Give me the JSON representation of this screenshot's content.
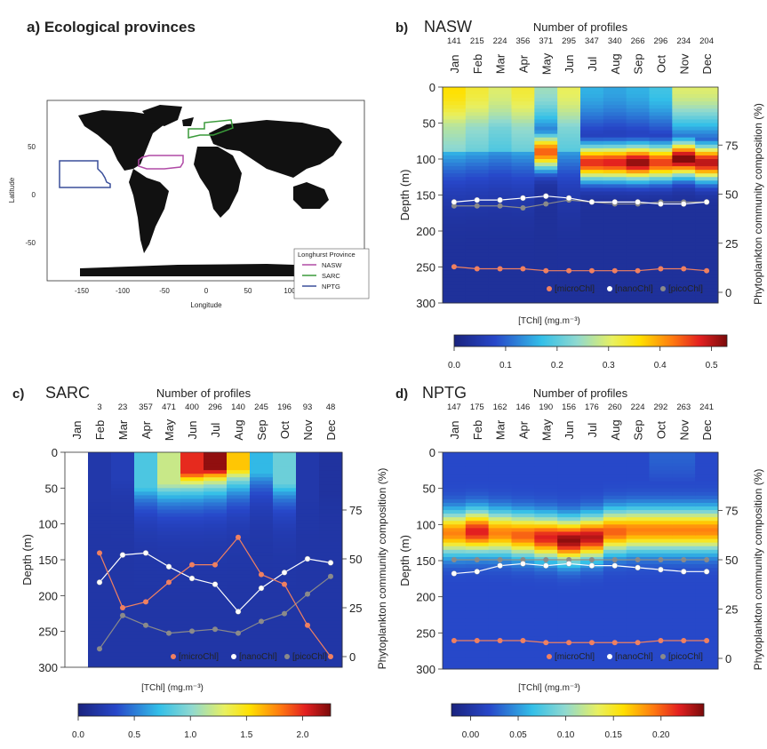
{
  "panel_a": {
    "title": "a)  Ecological provinces",
    "xlabel": "Longitude",
    "ylabel": "Latitude",
    "xticks": [
      "-150",
      "-100",
      "-50",
      "0",
      "50",
      "100",
      "150"
    ],
    "yticks": [
      "50",
      "0",
      "-50"
    ],
    "legend_title": "Longhurst Province",
    "legend": [
      {
        "label": "NASW",
        "color": "#b04aa6"
      },
      {
        "label": "SARC",
        "color": "#3a9a3a"
      },
      {
        "label": "NPTG",
        "color": "#3a4f9a"
      }
    ]
  },
  "shared": {
    "months": [
      "Jan",
      "Feb",
      "Mar",
      "Apr",
      "May",
      "Jun",
      "Jul",
      "Aug",
      "Sep",
      "Oct",
      "Nov",
      "Dec"
    ],
    "profiles_label": "Number of profiles",
    "depth_label": "Depth (m)",
    "right_label": "Phytoplankton community composition (%)",
    "legend_micro": "[microChl]",
    "legend_nano": "[nanoChl]",
    "legend_pico": "[picoChl]",
    "colorbar_label": "[TChl] (mg.m⁻³)",
    "depth_ticks": [
      "0",
      "50",
      "100",
      "150",
      "200",
      "250",
      "300"
    ],
    "pct_ticks": [
      "75",
      "50",
      "25",
      "0"
    ],
    "micro_color": "#f08060",
    "nano_color": "#ffffff",
    "pico_color": "#8a8a8a"
  },
  "chart_data": [
    {
      "id": "NASW",
      "type": "heatmap",
      "panel_label": "b)",
      "title": "NASW",
      "profiles": [
        "141",
        "215",
        "224",
        "356",
        "371",
        "295",
        "347",
        "340",
        "266",
        "296",
        "234",
        "204"
      ],
      "colorbar_ticks": [
        "0.0",
        "0.1",
        "0.2",
        "0.3",
        "0.4",
        "0.5"
      ],
      "colorbar_range": [
        0,
        0.53
      ],
      "dcm_depth": [
        0,
        0,
        0,
        0,
        90,
        0,
        105,
        105,
        105,
        105,
        100,
        105
      ],
      "dcm_peak": [
        0.33,
        0.3,
        0.27,
        0.3,
        0.44,
        0.28,
        0.47,
        0.48,
        0.52,
        0.46,
        0.53,
        0.5
      ],
      "surface": [
        0.33,
        0.3,
        0.27,
        0.27,
        0.25,
        0.12,
        0.16,
        0.15,
        0.16,
        0.18,
        0.3,
        0.3
      ],
      "micro_pct": [
        13,
        12,
        12,
        12,
        11,
        11,
        11,
        11,
        11,
        12,
        12,
        11
      ],
      "nano_pct": [
        46,
        47,
        47,
        48,
        49,
        48,
        46,
        46,
        46,
        45,
        45,
        46
      ],
      "pico_pct": [
        44,
        44,
        44,
        43,
        45,
        47,
        46,
        45,
        45,
        46,
        46,
        46
      ],
      "ylim": [
        300,
        0
      ],
      "pct_lim": [
        0,
        100
      ]
    },
    {
      "id": "SARC",
      "type": "heatmap",
      "panel_label": "c)",
      "title": "SARC",
      "profiles": [
        "3",
        "23",
        "357",
        "471",
        "400",
        "296",
        "140",
        "245",
        "196",
        "93",
        "48"
      ],
      "months_with_data": [
        1,
        2,
        3,
        4,
        5,
        6,
        7,
        8,
        9,
        10,
        11
      ],
      "colorbar_ticks": [
        "0.0",
        "0.5",
        "1.0",
        "1.5",
        "2.0"
      ],
      "colorbar_range": [
        0,
        2.25
      ],
      "surface": [
        0,
        0.2,
        0.25,
        0.8,
        1.2,
        2.0,
        2.2,
        1.6,
        0.7,
        0.9,
        0.2,
        0.15
      ],
      "mix_depth": [
        0,
        60,
        40,
        50,
        45,
        30,
        25,
        25,
        30,
        45,
        60,
        60
      ],
      "micro_pct": [
        null,
        53,
        25,
        28,
        38,
        47,
        47,
        61,
        42,
        37,
        16,
        0
      ],
      "nano_pct": [
        null,
        38,
        52,
        53,
        46,
        40,
        37,
        23,
        35,
        43,
        50,
        48
      ],
      "pico_pct": [
        null,
        4,
        21,
        16,
        12,
        13,
        14,
        12,
        18,
        22,
        32,
        41
      ],
      "ylim": [
        300,
        0
      ],
      "pct_lim": [
        0,
        100
      ]
    },
    {
      "id": "NPTG",
      "type": "heatmap",
      "panel_label": "d)",
      "title": "NPTG",
      "profiles": [
        "147",
        "175",
        "162",
        "146",
        "190",
        "156",
        "176",
        "260",
        "224",
        "292",
        "263",
        "241"
      ],
      "colorbar_ticks": [
        "0.00",
        "0.05",
        "0.10",
        "0.15",
        "0.20"
      ],
      "colorbar_range": [
        -0.02,
        0.245
      ],
      "dcm_depth": [
        112,
        110,
        112,
        115,
        118,
        122,
        118,
        110,
        108,
        108,
        108,
        108
      ],
      "dcm_peak": [
        0.19,
        0.22,
        0.19,
        0.2,
        0.22,
        0.24,
        0.23,
        0.2,
        0.19,
        0.19,
        0.19,
        0.19
      ],
      "surface": [
        0.02,
        0.02,
        0.02,
        0.02,
        0.02,
        0.02,
        0.02,
        0.02,
        0.02,
        0.03,
        0.03,
        0.02
      ],
      "micro_pct": [
        9,
        9,
        9,
        9,
        8,
        8,
        8,
        8,
        8,
        9,
        9,
        9
      ],
      "nano_pct": [
        43,
        44,
        47,
        48,
        47,
        48,
        47,
        47,
        46,
        45,
        44,
        44
      ],
      "pico_pct": [
        50,
        50,
        50,
        50,
        50,
        50,
        50,
        50,
        50,
        50,
        50,
        50
      ],
      "ylim": [
        300,
        0
      ],
      "pct_lim": [
        0,
        100
      ]
    }
  ]
}
